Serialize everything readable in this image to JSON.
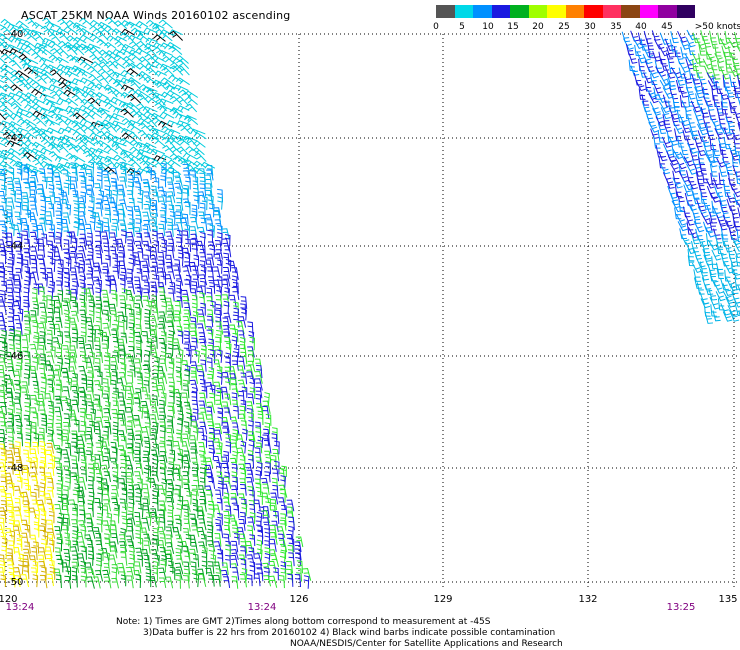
{
  "title": "ASCAT 25KM NOAA Winds 20160102 ascending",
  "legend": {
    "colors": [
      "#555555",
      "#00d8e8",
      "#0090ff",
      "#1a1ae0",
      "#00b020",
      "#a0ff00",
      "#ffff00",
      "#ff8000",
      "#ff0000",
      "#ff3060",
      "#8b4513",
      "#ff00ff",
      "#9000a0",
      "#300060"
    ],
    "labels": [
      "0",
      "5",
      "10",
      "15",
      "20",
      "25",
      "30",
      "35",
      "40",
      "45",
      ">50 knots"
    ]
  },
  "map": {
    "lat_labels": [
      "-40",
      "-42",
      "-44",
      "-46",
      "-48",
      "-50"
    ],
    "lon_labels": [
      "120",
      "123",
      "126",
      "129",
      "132",
      "135"
    ],
    "times": [
      "13:24",
      "13:24",
      "13:25"
    ],
    "time_color": "#800080",
    "grid": true
  },
  "notes": {
    "line1": "Note: 1) Times are GMT 2)Times along bottom correspond to measurement at -45S",
    "line2": "3)Data buffer is 22 hrs from 20160102 4) Black wind barbs indicate possible contamination",
    "line3": "NOAA/NESDIS/Center for Satellite Applications and Research"
  }
}
